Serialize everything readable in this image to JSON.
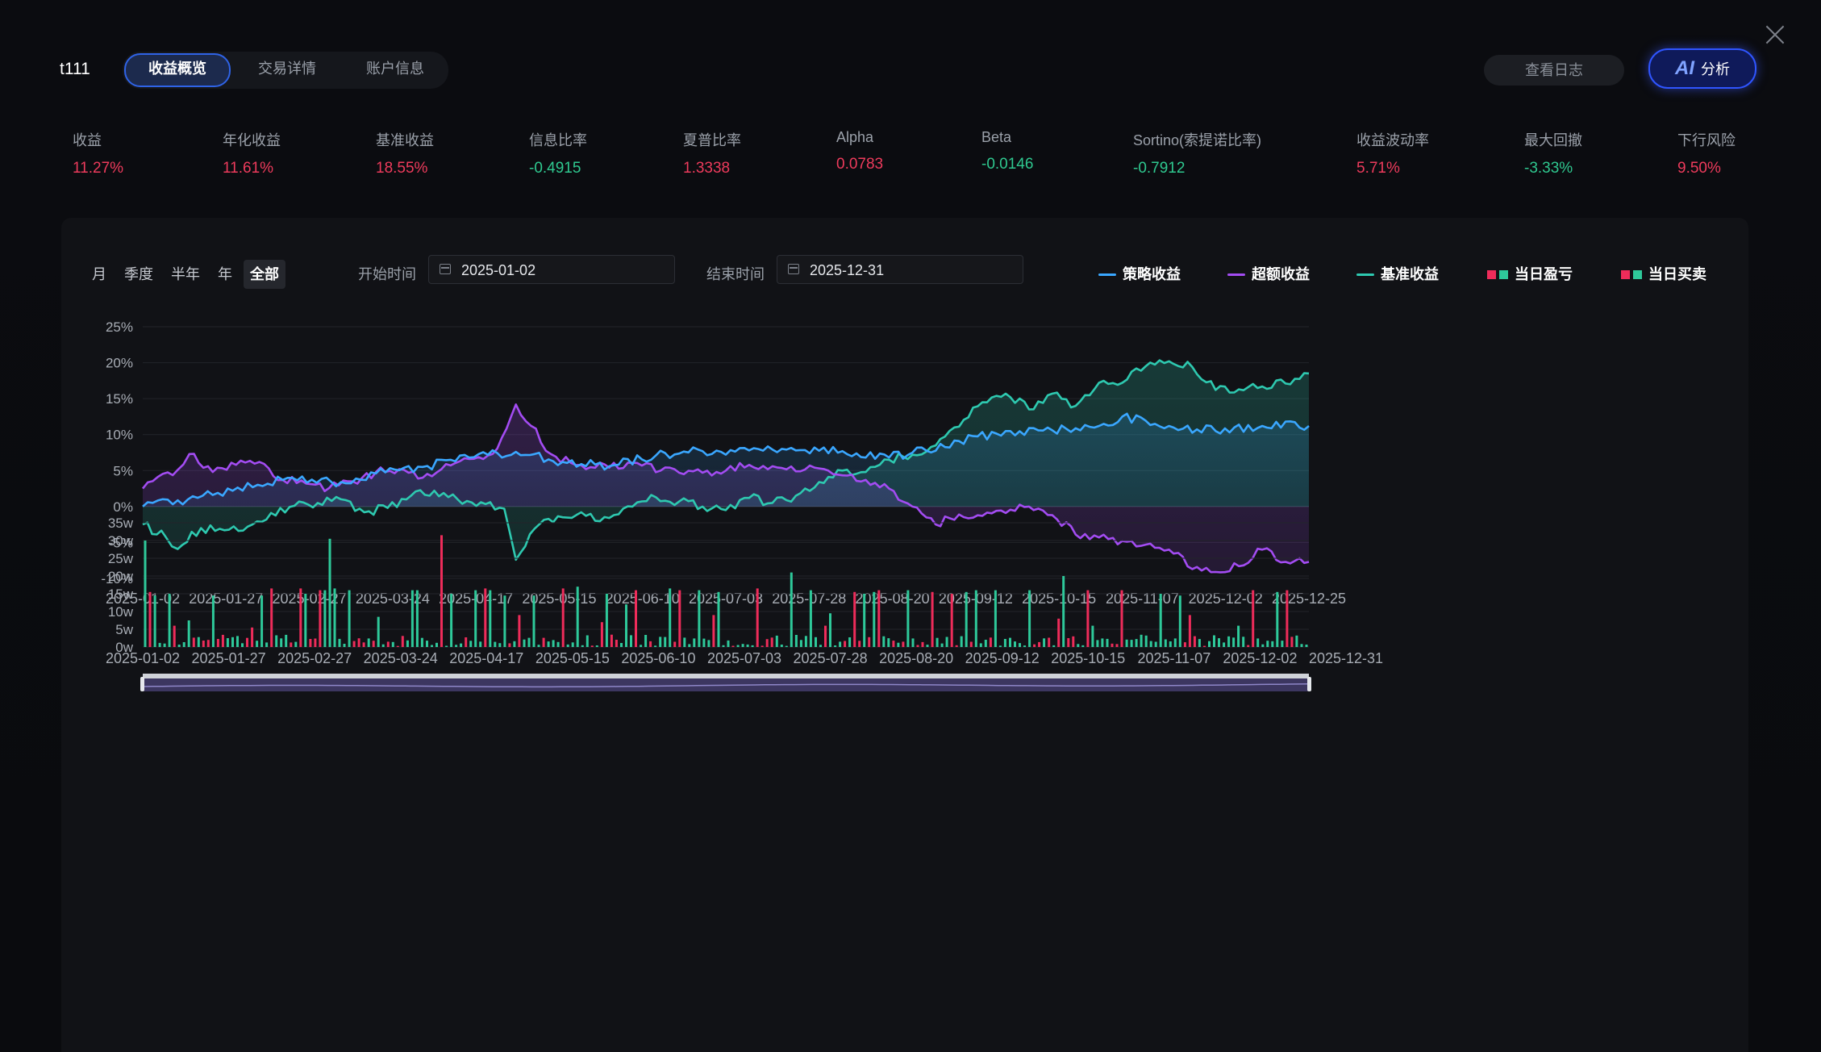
{
  "header": {
    "strategy_name": "t111",
    "tabs": [
      "收益概览",
      "交易详情",
      "账户信息"
    ],
    "active_tab": 0,
    "log_button": "查看日志",
    "ai_mark": "AI",
    "ai_label": "分析"
  },
  "metrics": [
    {
      "label": "收益",
      "value": "11.27%",
      "sign": "pos"
    },
    {
      "label": "年化收益",
      "value": "11.61%",
      "sign": "pos"
    },
    {
      "label": "基准收益",
      "value": "18.55%",
      "sign": "pos"
    },
    {
      "label": "信息比率",
      "value": "-0.4915",
      "sign": "neg"
    },
    {
      "label": "夏普比率",
      "value": "1.3338",
      "sign": "pos"
    },
    {
      "label": "Alpha",
      "value": "0.0783",
      "sign": "pos"
    },
    {
      "label": "Beta",
      "value": "-0.0146",
      "sign": "neg"
    },
    {
      "label": "Sortino(索提诺比率)",
      "value": "-0.7912",
      "sign": "neg"
    },
    {
      "label": "收益波动率",
      "value": "5.71%",
      "sign": "pos"
    },
    {
      "label": "最大回撤",
      "value": "-3.33%",
      "sign": "neg"
    },
    {
      "label": "下行风险",
      "value": "9.50%",
      "sign": "pos"
    }
  ],
  "controls": {
    "periods": [
      "月",
      "季度",
      "半年",
      "年",
      "全部"
    ],
    "active_period": 4,
    "start_label": "开始时间",
    "start_date": "2025-01-02",
    "end_label": "结束时间",
    "end_date": "2025-12-31"
  },
  "legend": [
    {
      "name": "策略收益",
      "kind": "line",
      "color": "#3aa7ff"
    },
    {
      "name": "超额收益",
      "kind": "line",
      "color": "#a34cf2"
    },
    {
      "name": "基准收益",
      "kind": "line",
      "color": "#2ec9b0"
    },
    {
      "name": "当日盈亏",
      "kind": "bar2",
      "colors": [
        "#ee2c5a",
        "#2ec99a"
      ]
    },
    {
      "name": "当日买卖",
      "kind": "bar2",
      "colors": [
        "#ee2c5a",
        "#2ec99a"
      ]
    }
  ],
  "chart_data": [
    {
      "type": "line",
      "x_ticks": [
        "2025-01-02",
        "2025-01-27",
        "2025-02-27",
        "2025-03-24",
        "2025-04-17",
        "2025-05-15",
        "2025-06-10",
        "2025-07-03",
        "2025-07-28",
        "2025-08-20",
        "2025-09-12",
        "2025-10-15",
        "2025-11-07",
        "2025-12-02",
        "2025-12-25"
      ],
      "y_ticks": [
        "25%",
        "20%",
        "15%",
        "10%",
        "5%",
        "0%",
        "-5%",
        "-10%"
      ],
      "ylim": [
        -10,
        25
      ],
      "y_unit": "%",
      "series": [
        {
          "name": "策略收益",
          "color": "#3aa7ff",
          "points": [
            [
              0,
              0
            ],
            [
              6,
              1.6
            ],
            [
              12,
              3.7
            ],
            [
              17,
              3.4
            ],
            [
              20,
              4.6
            ],
            [
              24,
              5.5
            ],
            [
              28,
              6.8
            ],
            [
              32,
              7.6
            ],
            [
              36,
              6.2
            ],
            [
              40,
              5.6
            ],
            [
              44,
              7.1
            ],
            [
              48,
              7.7
            ],
            [
              52,
              7.8
            ],
            [
              56,
              7.8
            ],
            [
              60,
              7.7
            ],
            [
              64,
              6.8
            ],
            [
              66,
              7.5
            ],
            [
              70,
              9.1
            ],
            [
              74,
              10.5
            ],
            [
              78,
              10.6
            ],
            [
              82,
              11.2
            ],
            [
              84,
              12.5
            ],
            [
              88,
              11.2
            ],
            [
              92,
              10.5
            ],
            [
              96,
              11.2
            ],
            [
              100,
              11.2
            ]
          ]
        },
        {
          "name": "超额收益",
          "color": "#a34cf2",
          "points": [
            [
              0,
              2.5
            ],
            [
              3,
              5.1
            ],
            [
              4,
              7.3
            ],
            [
              6,
              4.8
            ],
            [
              8,
              5.8
            ],
            [
              10,
              6.2
            ],
            [
              12,
              3.7
            ],
            [
              14,
              3.2
            ],
            [
              16,
              2.6
            ],
            [
              18,
              3.5
            ],
            [
              20,
              4.8
            ],
            [
              22,
              5.2
            ],
            [
              24,
              4.0
            ],
            [
              26,
              5.9
            ],
            [
              28,
              6.6
            ],
            [
              30,
              7.3
            ],
            [
              32,
              14.2
            ],
            [
              35,
              7.3
            ],
            [
              38,
              5.2
            ],
            [
              42,
              6.1
            ],
            [
              46,
              4.7
            ],
            [
              50,
              5.0
            ],
            [
              52,
              5.8
            ],
            [
              54,
              5.6
            ],
            [
              56,
              4.9
            ],
            [
              58,
              5.3
            ],
            [
              62,
              3.7
            ],
            [
              64,
              2.5
            ],
            [
              66,
              0
            ],
            [
              68,
              -2.5
            ],
            [
              70,
              -1.1
            ],
            [
              72,
              -1.3
            ],
            [
              74,
              -0.9
            ],
            [
              76,
              0
            ],
            [
              78,
              -1.2
            ],
            [
              80,
              -3.9
            ],
            [
              82,
              -4.3
            ],
            [
              84,
              -4.8
            ],
            [
              86,
              -5.3
            ],
            [
              88,
              -6.0
            ],
            [
              90,
              -8.7
            ],
            [
              92,
              -9.1
            ],
            [
              94,
              -8.3
            ],
            [
              96,
              -6.0
            ],
            [
              98,
              -7.7
            ],
            [
              100,
              -7.7
            ]
          ]
        },
        {
          "name": "基准收益",
          "color": "#2ec9b0",
          "points": [
            [
              0,
              -2.5
            ],
            [
              2,
              -4.3
            ],
            [
              3,
              -5.9
            ],
            [
              5,
              -3.0
            ],
            [
              7,
              -3.3
            ],
            [
              9,
              -2.8
            ],
            [
              11,
              -0.9
            ],
            [
              13,
              0.1
            ],
            [
              15,
              0.5
            ],
            [
              17,
              1.0
            ],
            [
              19,
              -0.8
            ],
            [
              21,
              -0.2
            ],
            [
              23,
              1.5
            ],
            [
              25,
              2.2
            ],
            [
              27,
              1.0
            ],
            [
              29,
              0.6
            ],
            [
              31,
              -0.3
            ],
            [
              32,
              -7.4
            ],
            [
              34,
              -2.5
            ],
            [
              36,
              -1.5
            ],
            [
              38,
              -1.3
            ],
            [
              40,
              -1.6
            ],
            [
              42,
              0
            ],
            [
              44,
              1.3
            ],
            [
              46,
              0.7
            ],
            [
              48,
              0
            ],
            [
              50,
              -0.5
            ],
            [
              52,
              1.2
            ],
            [
              54,
              0.5
            ],
            [
              56,
              1.5
            ],
            [
              58,
              3.4
            ],
            [
              60,
              5.0
            ],
            [
              62,
              4.8
            ],
            [
              64,
              6.5
            ],
            [
              66,
              7.2
            ],
            [
              68,
              8.5
            ],
            [
              70,
              11.1
            ],
            [
              72,
              14.5
            ],
            [
              74,
              15.7
            ],
            [
              76,
              13.5
            ],
            [
              78,
              15.7
            ],
            [
              80,
              14.0
            ],
            [
              82,
              17.2
            ],
            [
              84,
              17.2
            ],
            [
              86,
              19.5
            ],
            [
              88,
              20.2
            ],
            [
              90,
              19.4
            ],
            [
              92,
              16.2
            ],
            [
              94,
              16.3
            ],
            [
              96,
              16.7
            ],
            [
              98,
              17.1
            ],
            [
              100,
              18.5
            ]
          ]
        }
      ]
    },
    {
      "type": "bar",
      "x_ticks": [
        "2025-01-02",
        "2025-01-27",
        "2025-02-27",
        "2025-03-24",
        "2025-04-17",
        "2025-05-15",
        "2025-06-10",
        "2025-07-03",
        "2025-07-28",
        "2025-08-20",
        "2025-09-12",
        "2025-10-15",
        "2025-11-07",
        "2025-12-02",
        "2025-12-31"
      ],
      "y_ticks": [
        "35w",
        "30w",
        "25w",
        "20w",
        "15w",
        "10w",
        "5w",
        "0w"
      ],
      "ylim": [
        0,
        35
      ],
      "y_unit": "w",
      "series": [
        {
          "name": "当日买卖 (卖)",
          "color": "#ee2c5a",
          "bars": [
            [
              1,
              15.5
            ],
            [
              6,
              6
            ],
            [
              13,
              2
            ],
            [
              22,
              5.5
            ],
            [
              26,
              16.5
            ],
            [
              32,
              16.5
            ],
            [
              36,
              16
            ],
            [
              42,
              2
            ],
            [
              50,
              1.5
            ],
            [
              61,
              31.5
            ],
            [
              70,
              16.5
            ],
            [
              77,
              9
            ],
            [
              86,
              16.5
            ],
            [
              94,
              7
            ],
            [
              101,
              16
            ],
            [
              110,
              16
            ],
            [
              117,
              9
            ],
            [
              126,
              16.5
            ],
            [
              140,
              6
            ],
            [
              146,
              15.5
            ],
            [
              151,
              16
            ],
            [
              162,
              15.5
            ],
            [
              166,
              15
            ],
            [
              182,
              16
            ],
            [
              188,
              8
            ],
            [
              194,
              16
            ],
            [
              201,
              16
            ],
            [
              215,
              9
            ],
            [
              228,
              16
            ],
            [
              235,
              16
            ]
          ]
        },
        {
          "name": "当日买卖 (买)",
          "color": "#2ec99a",
          "bars": [
            [
              0,
              30
            ],
            [
              2,
              14.5
            ],
            [
              5,
              15
            ],
            [
              9,
              7.5
            ],
            [
              14,
              14.5
            ],
            [
              24,
              14.5
            ],
            [
              33,
              15
            ],
            [
              37,
              16
            ],
            [
              38,
              30.5
            ],
            [
              39,
              16.5
            ],
            [
              42,
              16
            ],
            [
              48,
              8.5
            ],
            [
              55,
              16
            ],
            [
              56,
              16
            ],
            [
              63,
              15
            ],
            [
              68,
              16
            ],
            [
              71,
              16
            ],
            [
              74,
              14.5
            ],
            [
              80,
              14.5
            ],
            [
              89,
              17
            ],
            [
              95,
              15
            ],
            [
              99,
              12
            ],
            [
              108,
              16.5
            ],
            [
              114,
              16
            ],
            [
              118,
              15.5
            ],
            [
              133,
              21
            ],
            [
              137,
              16
            ],
            [
              141,
              9.5
            ],
            [
              148,
              15
            ],
            [
              150,
              15.5
            ],
            [
              157,
              16
            ],
            [
              169,
              15.5
            ],
            [
              171,
              16
            ],
            [
              175,
              16
            ],
            [
              182,
              16
            ],
            [
              189,
              20
            ],
            [
              195,
              6
            ],
            [
              209,
              15
            ],
            [
              213,
              14.5
            ],
            [
              225,
              6
            ],
            [
              233,
              15.5
            ]
          ]
        }
      ],
      "bar_count": 240
    }
  ]
}
